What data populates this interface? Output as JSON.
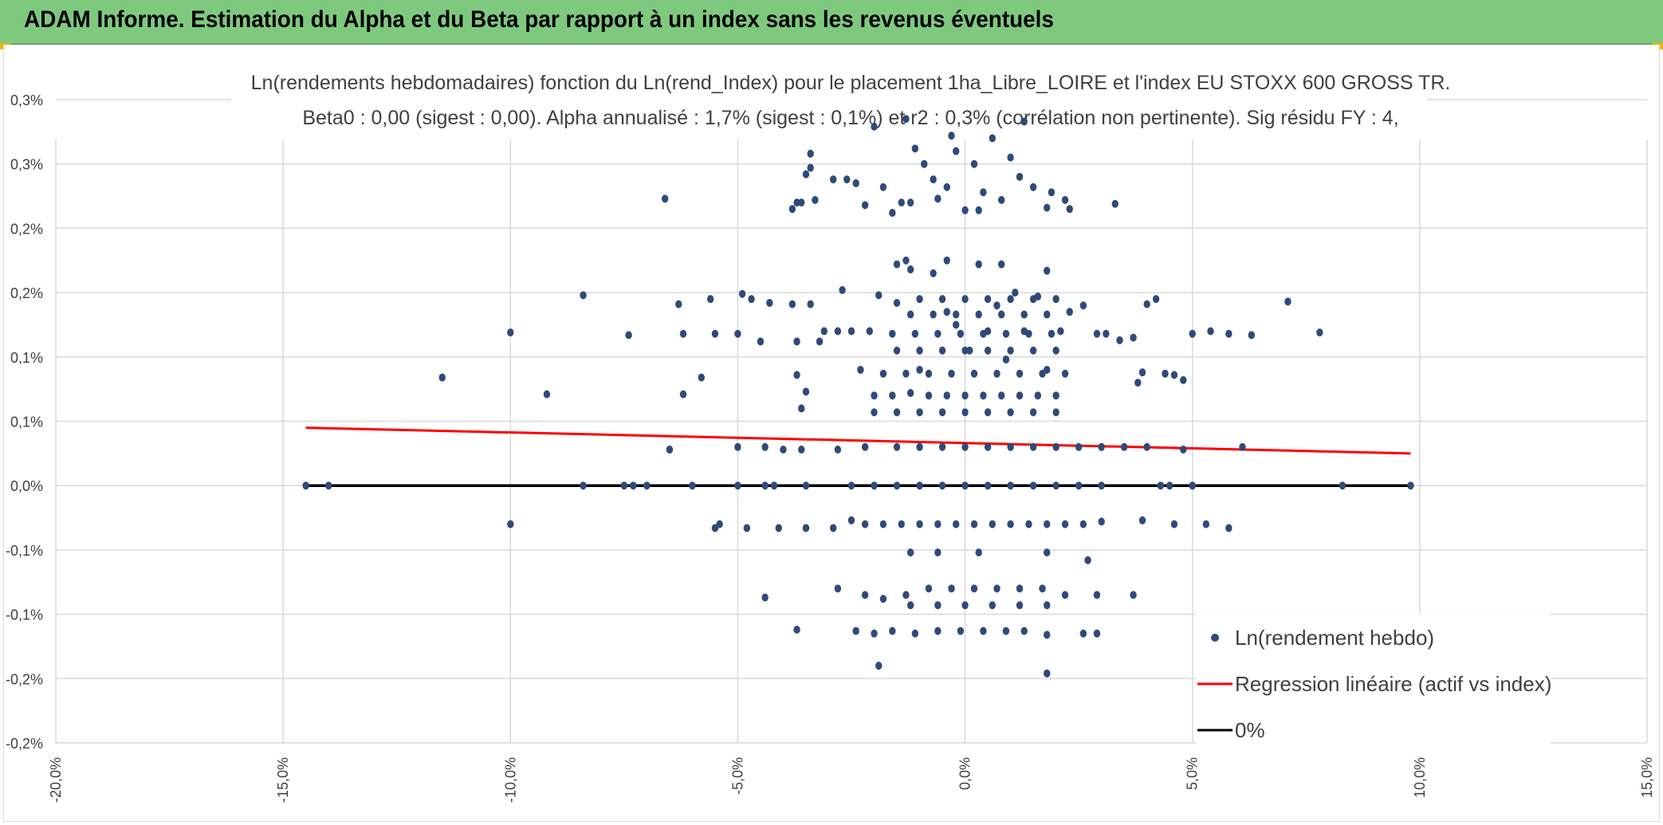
{
  "header": {
    "title": "ADAM Informe. Estimation du Alpha et du Beta par rapport à un index sans les revenus éventuels",
    "bg_color": "#7fc97f",
    "corner_color": "#f2b600"
  },
  "chart_data": {
    "type": "scatter",
    "title_line1": "Ln(rendements hebdomadaires) fonction du Ln(rend_Index) pour le placement 1ha_Libre_LOIRE et l'index EU STOXX 600 GROSS TR.",
    "title_line2": "Beta0 : 0,00 (sigest : 0,00). Alpha annualisé : 1,7% (sigest : 0,1%) et r2 : 0,3% (corrélation non pertinente). Sig résidu FY : 4,",
    "xlabel": "",
    "ylabel": "",
    "xlim": [
      -20,
      15
    ],
    "ylim": [
      -0.2,
      0.3
    ],
    "x_tick_values": [
      -20,
      -15,
      -10,
      -5,
      0,
      5,
      10,
      15
    ],
    "x_tick_labels": [
      "-20,0%",
      "-15,0%",
      "-10,0%",
      "-5,0%",
      "0,0%",
      "5,0%",
      "10,0%",
      "15,0%"
    ],
    "y_tick_values": [
      -0.2,
      -0.15,
      -0.1,
      -0.05,
      0,
      0.05,
      0.1,
      0.15,
      0.2,
      0.25,
      0.3
    ],
    "y_tick_labels": [
      "-0,2%",
      "-0,2%",
      "-0,1%",
      "-0,1%",
      "0,0%",
      "0,1%",
      "0,1%",
      "0,2%",
      "0,2%",
      "0,3%",
      "0,3%"
    ],
    "grid": true,
    "legend_position": "bottom-right",
    "series": [
      {
        "name": "Ln(rendement hebdo)",
        "color": "#2f4a7a",
        "points": [
          [
            -14.5,
            0
          ],
          [
            -14,
            0
          ],
          [
            -8.4,
            0
          ],
          [
            -7.5,
            0
          ],
          [
            -7.3,
            0
          ],
          [
            -7,
            0
          ],
          [
            -6,
            0
          ],
          [
            -5,
            0
          ],
          [
            -4.4,
            0
          ],
          [
            -4.2,
            0
          ],
          [
            -3.5,
            0
          ],
          [
            -2.5,
            0
          ],
          [
            -2,
            0
          ],
          [
            -1.5,
            0
          ],
          [
            -1,
            0
          ],
          [
            -0.5,
            0
          ],
          [
            0,
            0
          ],
          [
            0.5,
            0
          ],
          [
            1,
            0
          ],
          [
            1.5,
            0
          ],
          [
            2,
            0
          ],
          [
            2.5,
            0
          ],
          [
            3,
            0
          ],
          [
            4.3,
            0
          ],
          [
            4.5,
            0
          ],
          [
            5,
            0
          ],
          [
            8.3,
            0
          ],
          [
            9.8,
            0
          ],
          [
            -11.5,
            0.084
          ],
          [
            -10,
            0.119
          ],
          [
            -9.2,
            0.071
          ],
          [
            -8.4,
            0.148
          ],
          [
            -7.4,
            0.117
          ],
          [
            -6.5,
            0.028
          ],
          [
            -6.3,
            0.141
          ],
          [
            -6.2,
            0.118
          ],
          [
            -6.2,
            0.071
          ],
          [
            -5.8,
            0.084
          ],
          [
            -5.6,
            0.145
          ],
          [
            -5.5,
            0.118
          ],
          [
            -5.0,
            0.118
          ],
          [
            -4.9,
            0.149
          ],
          [
            -4.7,
            0.145
          ],
          [
            -4.5,
            0.112
          ],
          [
            -4.3,
            0.142
          ],
          [
            -3.8,
            0.141
          ],
          [
            -3.7,
            0.112
          ],
          [
            -3.7,
            0.086
          ],
          [
            -3.6,
            0.06
          ],
          [
            -3.5,
            0.073
          ],
          [
            -3.4,
            0.141
          ],
          [
            -3.2,
            0.112
          ],
          [
            -3.1,
            0.12
          ],
          [
            -2.8,
            0.12
          ],
          [
            -2.7,
            0.152
          ],
          [
            -2.5,
            0.12
          ],
          [
            -2.3,
            0.09
          ],
          [
            -2.1,
            0.12
          ],
          [
            -1.9,
            0.148
          ],
          [
            -1.5,
            0.142
          ],
          [
            -1.3,
            0.175
          ],
          [
            -1.0,
            0.09
          ],
          [
            -0.7,
            0.165
          ],
          [
            -0.4,
            0.135
          ],
          [
            -0.2,
            0.125
          ],
          [
            0.1,
            0.105
          ],
          [
            0.3,
            0.172
          ],
          [
            0.5,
            0.12
          ],
          [
            0.7,
            0.14
          ],
          [
            0.9,
            0.098
          ],
          [
            1.1,
            0.15
          ],
          [
            1.3,
            0.12
          ],
          [
            1.6,
            0.147
          ],
          [
            1.8,
            0.09
          ],
          [
            2.1,
            0.12
          ],
          [
            2.3,
            0.135
          ],
          [
            2.6,
            0.14
          ],
          [
            2.9,
            0.118
          ],
          [
            3.1,
            0.118
          ],
          [
            3.4,
            0.113
          ],
          [
            3.7,
            0.115
          ],
          [
            3.8,
            0.08
          ],
          [
            3.9,
            0.088
          ],
          [
            4.0,
            0.141
          ],
          [
            4.2,
            0.145
          ],
          [
            4.4,
            0.087
          ],
          [
            4.6,
            0.086
          ],
          [
            4.8,
            0.082
          ],
          [
            5.0,
            0.118
          ],
          [
            5.4,
            0.12
          ],
          [
            5.8,
            0.118
          ],
          [
            6.3,
            0.117
          ],
          [
            7.1,
            0.143
          ],
          [
            7.8,
            0.119
          ],
          [
            -6.5,
            0.028
          ],
          [
            -5.0,
            0.03
          ],
          [
            -4.4,
            0.03
          ],
          [
            -4.0,
            0.028
          ],
          [
            -3.6,
            0.028
          ],
          [
            -2.8,
            0.028
          ],
          [
            -2.2,
            0.03
          ],
          [
            -1.5,
            0.03
          ],
          [
            -1.0,
            0.03
          ],
          [
            -0.5,
            0.03
          ],
          [
            0,
            0.03
          ],
          [
            0.5,
            0.03
          ],
          [
            1.0,
            0.03
          ],
          [
            1.5,
            0.03
          ],
          [
            2.0,
            0.03
          ],
          [
            2.5,
            0.03
          ],
          [
            3.0,
            0.03
          ],
          [
            3.5,
            0.03
          ],
          [
            4.0,
            0.03
          ],
          [
            4.8,
            0.028
          ],
          [
            6.1,
            0.03
          ],
          [
            -2.0,
            0.07
          ],
          [
            -1.6,
            0.07
          ],
          [
            -1.2,
            0.072
          ],
          [
            -0.8,
            0.07
          ],
          [
            -0.4,
            0.07
          ],
          [
            0,
            0.07
          ],
          [
            0.4,
            0.07
          ],
          [
            0.8,
            0.07
          ],
          [
            1.2,
            0.07
          ],
          [
            1.6,
            0.07
          ],
          [
            2.0,
            0.07
          ],
          [
            -2.0,
            0.057
          ],
          [
            -1.5,
            0.057
          ],
          [
            -1.0,
            0.057
          ],
          [
            -0.5,
            0.057
          ],
          [
            0,
            0.057
          ],
          [
            0.5,
            0.057
          ],
          [
            1.0,
            0.057
          ],
          [
            1.5,
            0.057
          ],
          [
            2.0,
            0.057
          ],
          [
            -1.8,
            0.087
          ],
          [
            -1.3,
            0.087
          ],
          [
            -0.8,
            0.087
          ],
          [
            -0.3,
            0.087
          ],
          [
            0.2,
            0.087
          ],
          [
            0.7,
            0.087
          ],
          [
            1.2,
            0.087
          ],
          [
            1.7,
            0.087
          ],
          [
            2.2,
            0.087
          ],
          [
            -1.5,
            0.105
          ],
          [
            -1.0,
            0.105
          ],
          [
            -0.5,
            0.105
          ],
          [
            0,
            0.105
          ],
          [
            0.5,
            0.105
          ],
          [
            1.0,
            0.105
          ],
          [
            1.5,
            0.105
          ],
          [
            2.0,
            0.105
          ],
          [
            -1.6,
            0.118
          ],
          [
            -1.1,
            0.118
          ],
          [
            -0.6,
            0.118
          ],
          [
            -0.1,
            0.118
          ],
          [
            0.4,
            0.118
          ],
          [
            0.9,
            0.118
          ],
          [
            1.4,
            0.118
          ],
          [
            1.9,
            0.118
          ],
          [
            -1.2,
            0.133
          ],
          [
            -0.7,
            0.133
          ],
          [
            -0.2,
            0.133
          ],
          [
            0.3,
            0.133
          ],
          [
            0.8,
            0.133
          ],
          [
            1.3,
            0.133
          ],
          [
            1.8,
            0.133
          ],
          [
            -1.0,
            0.145
          ],
          [
            -0.5,
            0.145
          ],
          [
            0,
            0.145
          ],
          [
            0.5,
            0.145
          ],
          [
            1.0,
            0.145
          ],
          [
            1.5,
            0.145
          ],
          [
            2.0,
            0.145
          ],
          [
            -1.5,
            0.172
          ],
          [
            -1.2,
            0.168
          ],
          [
            -0.4,
            0.175
          ],
          [
            0.8,
            0.172
          ],
          [
            1.8,
            0.167
          ],
          [
            -3.8,
            0.215
          ],
          [
            -3.7,
            0.22
          ],
          [
            -3.6,
            0.22
          ],
          [
            -3.5,
            0.242
          ],
          [
            -3.4,
            0.247
          ],
          [
            -3.3,
            0.222
          ],
          [
            -2.9,
            0.238
          ],
          [
            -2.6,
            0.238
          ],
          [
            -2.4,
            0.235
          ],
          [
            -2.2,
            0.218
          ],
          [
            -2.0,
            0.279
          ],
          [
            -1.8,
            0.232
          ],
          [
            -1.6,
            0.212
          ],
          [
            -1.4,
            0.22
          ],
          [
            -1.3,
            0.285
          ],
          [
            -1.2,
            0.22
          ],
          [
            -1.1,
            0.262
          ],
          [
            -0.9,
            0.25
          ],
          [
            -0.7,
            0.238
          ],
          [
            -0.6,
            0.223
          ],
          [
            -0.4,
            0.232
          ],
          [
            -0.3,
            0.272
          ],
          [
            -0.2,
            0.26
          ],
          [
            0,
            0.214
          ],
          [
            0.2,
            0.25
          ],
          [
            0.3,
            0.214
          ],
          [
            0.4,
            0.228
          ],
          [
            0.6,
            0.27
          ],
          [
            0.8,
            0.222
          ],
          [
            1.0,
            0.255
          ],
          [
            1.2,
            0.24
          ],
          [
            1.3,
            0.283
          ],
          [
            1.5,
            0.232
          ],
          [
            1.8,
            0.216
          ],
          [
            1.9,
            0.228
          ],
          [
            2.2,
            0.222
          ],
          [
            2.3,
            0.215
          ],
          [
            3.3,
            0.219
          ],
          [
            -6.6,
            0.223
          ],
          [
            -3.4,
            0.258
          ],
          [
            -5.4,
            -0.03
          ],
          [
            -5.5,
            -0.033
          ],
          [
            -4.8,
            -0.033
          ],
          [
            -4.1,
            -0.033
          ],
          [
            -3.5,
            -0.033
          ],
          [
            -2.9,
            -0.033
          ],
          [
            -2.5,
            -0.027
          ],
          [
            -2.2,
            -0.03
          ],
          [
            -1.8,
            -0.03
          ],
          [
            -1.4,
            -0.03
          ],
          [
            -1.0,
            -0.03
          ],
          [
            -0.6,
            -0.03
          ],
          [
            -0.2,
            -0.03
          ],
          [
            0.2,
            -0.03
          ],
          [
            0.6,
            -0.03
          ],
          [
            1.0,
            -0.03
          ],
          [
            1.4,
            -0.03
          ],
          [
            1.8,
            -0.03
          ],
          [
            2.2,
            -0.03
          ],
          [
            2.6,
            -0.03
          ],
          [
            3.0,
            -0.028
          ],
          [
            3.9,
            -0.027
          ],
          [
            4.6,
            -0.03
          ],
          [
            5.3,
            -0.03
          ],
          [
            5.8,
            -0.033
          ],
          [
            -10,
            -0.03
          ],
          [
            -1.2,
            -0.052
          ],
          [
            -0.6,
            -0.052
          ],
          [
            0.3,
            -0.052
          ],
          [
            1.8,
            -0.052
          ],
          [
            2.7,
            -0.058
          ],
          [
            -2.8,
            -0.08
          ],
          [
            -2.2,
            -0.085
          ],
          [
            -1.8,
            -0.088
          ],
          [
            -1.3,
            -0.085
          ],
          [
            -0.8,
            -0.08
          ],
          [
            -0.3,
            -0.08
          ],
          [
            0.2,
            -0.08
          ],
          [
            0.7,
            -0.08
          ],
          [
            1.2,
            -0.08
          ],
          [
            1.7,
            -0.08
          ],
          [
            2.2,
            -0.085
          ],
          [
            2.9,
            -0.085
          ],
          [
            3.7,
            -0.085
          ],
          [
            -4.4,
            -0.087
          ],
          [
            -1.2,
            -0.093
          ],
          [
            -0.6,
            -0.093
          ],
          [
            0,
            -0.093
          ],
          [
            0.6,
            -0.093
          ],
          [
            1.2,
            -0.093
          ],
          [
            1.8,
            -0.093
          ],
          [
            -3.7,
            -0.112
          ],
          [
            -2.4,
            -0.113
          ],
          [
            -2.0,
            -0.115
          ],
          [
            -1.6,
            -0.113
          ],
          [
            -1.1,
            -0.115
          ],
          [
            -0.6,
            -0.113
          ],
          [
            -0.1,
            -0.113
          ],
          [
            0.4,
            -0.113
          ],
          [
            0.9,
            -0.113
          ],
          [
            1.3,
            -0.113
          ],
          [
            1.8,
            -0.116
          ],
          [
            2.6,
            -0.115
          ],
          [
            2.9,
            -0.115
          ],
          [
            -1.9,
            -0.14
          ],
          [
            1.8,
            -0.146
          ]
        ]
      },
      {
        "name": "Regression linéaire (actif vs index)",
        "color": "#ff0000",
        "type": "line",
        "x": [
          -14.5,
          9.8
        ],
        "y": [
          0.045,
          0.025
        ]
      },
      {
        "name": "0%",
        "color": "#000000",
        "type": "line",
        "x": [
          -14.5,
          9.8
        ],
        "y": [
          0,
          0
        ]
      }
    ]
  }
}
